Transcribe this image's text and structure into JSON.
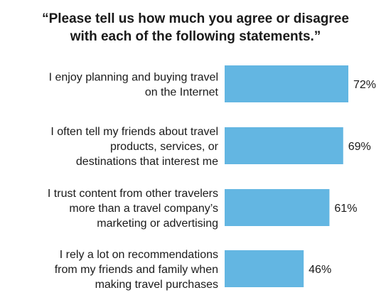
{
  "chart_data": {
    "type": "bar",
    "orientation": "horizontal",
    "title_lines": [
      "“Please tell us how much you agree or disagree",
      "with each of the following statements.”"
    ],
    "categories": [
      [
        "I enjoy planning and buying travel",
        "on the Internet"
      ],
      [
        "I often tell my friends about travel",
        "products, services, or",
        "destinations that interest me"
      ],
      [
        "I trust content from other travelers",
        "more than a travel company’s",
        "marketing or advertising"
      ],
      [
        "I rely a lot on recommendations",
        "from my friends and family when",
        "making travel purchases"
      ]
    ],
    "values": [
      72,
      69,
      61,
      46
    ],
    "value_labels": [
      "72%",
      "69%",
      "61%",
      "46%"
    ],
    "value_unit": "%",
    "xlim": [
      0,
      100
    ],
    "grid": false,
    "legend": "none",
    "bar_color": "#63b6e2"
  }
}
